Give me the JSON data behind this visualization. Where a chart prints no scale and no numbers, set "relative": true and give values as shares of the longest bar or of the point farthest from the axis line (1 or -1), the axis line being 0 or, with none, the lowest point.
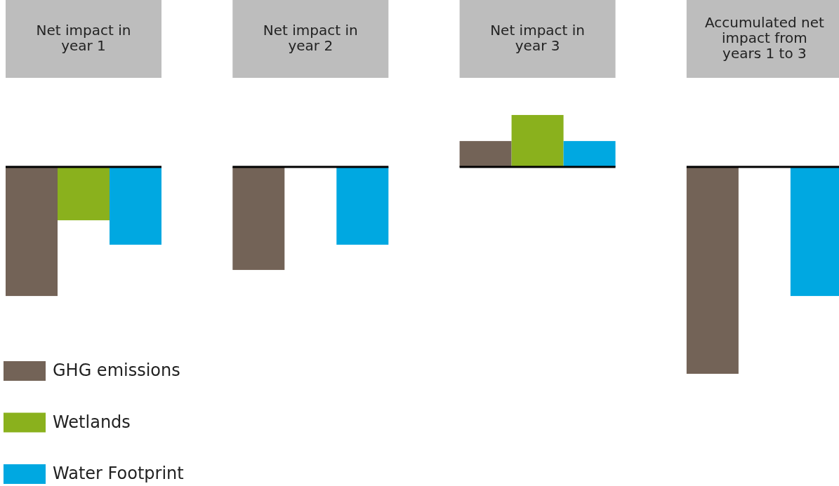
{
  "chart_data": {
    "type": "bar",
    "relative": true,
    "legend": "bottom left",
    "categories": [
      "Net impact in year 1",
      "Net impact in year 2",
      "Net impact in year 3",
      "Accumulated net impact from years 1 to 3"
    ],
    "ref_lines": [
      {
        "axis": "y",
        "value": 0,
        "color": "#000000"
      }
    ],
    "series": [
      {
        "name": "GHG emissions",
        "color": "#736357",
        "values": [
          -0.624,
          -0.498,
          0.125,
          -1
        ]
      },
      {
        "name": "Wetlands",
        "color": "#8ab11d",
        "values": [
          -0.258,
          null,
          0.251,
          null
        ]
      },
      {
        "name": "Water Footprint",
        "color": "#00a8e1",
        "values": [
          -0.376,
          -0.376,
          0.125,
          -0.624
        ]
      }
    ]
  }
}
